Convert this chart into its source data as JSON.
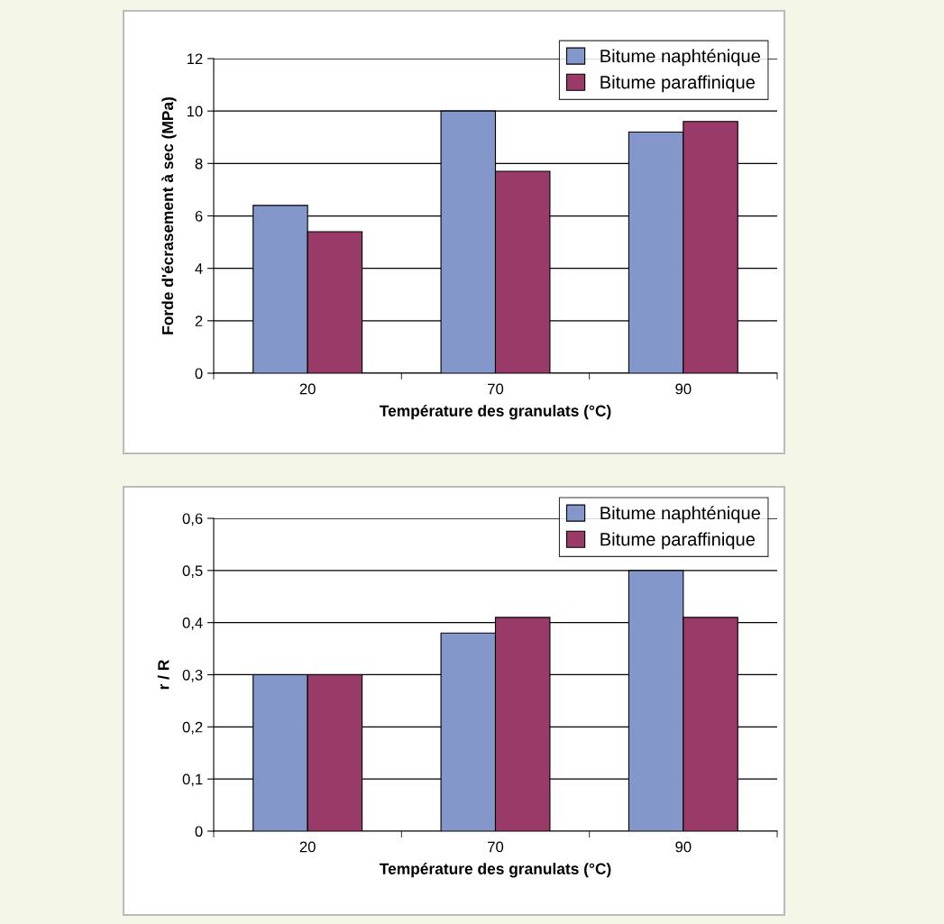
{
  "chart_data": [
    {
      "type": "bar",
      "xlabel": "Température des granulats (°C)",
      "ylabel": "Forde d'écrasement à sec (MPa)",
      "categories": [
        "20",
        "70",
        "90"
      ],
      "series": [
        {
          "name": "Bitume naphténique",
          "color": "#8497cb",
          "values": [
            6.4,
            10.0,
            9.2
          ]
        },
        {
          "name": "Bitume paraffinique",
          "color": "#993a69",
          "values": [
            5.4,
            7.7,
            9.6
          ]
        }
      ],
      "ylim": [
        0,
        12
      ],
      "yticks": [
        0,
        2,
        4,
        6,
        8,
        10,
        12
      ],
      "grid": "y",
      "legend": "top right"
    },
    {
      "type": "bar",
      "xlabel": "Température des granulats (°C)",
      "ylabel": "r / R",
      "categories": [
        "20",
        "70",
        "90"
      ],
      "series": [
        {
          "name": "Bitume naphténique",
          "color": "#8497cb",
          "values": [
            0.3,
            0.38,
            0.5
          ]
        },
        {
          "name": "Bitume paraffinique",
          "color": "#993a69",
          "values": [
            0.3,
            0.41,
            0.41
          ]
        }
      ],
      "ylim": [
        0,
        0.6
      ],
      "yticks": [
        {
          "value": 0,
          "label": "0"
        },
        {
          "value": 0.1,
          "label": "0,1"
        },
        {
          "value": 0.2,
          "label": "0,2"
        },
        {
          "value": 0.3,
          "label": "0,3"
        },
        {
          "value": 0.4,
          "label": "0,4"
        },
        {
          "value": 0.5,
          "label": "0,5"
        },
        {
          "value": 0.6,
          "label": "0,6"
        }
      ],
      "grid": "y",
      "legend": "top right"
    }
  ]
}
